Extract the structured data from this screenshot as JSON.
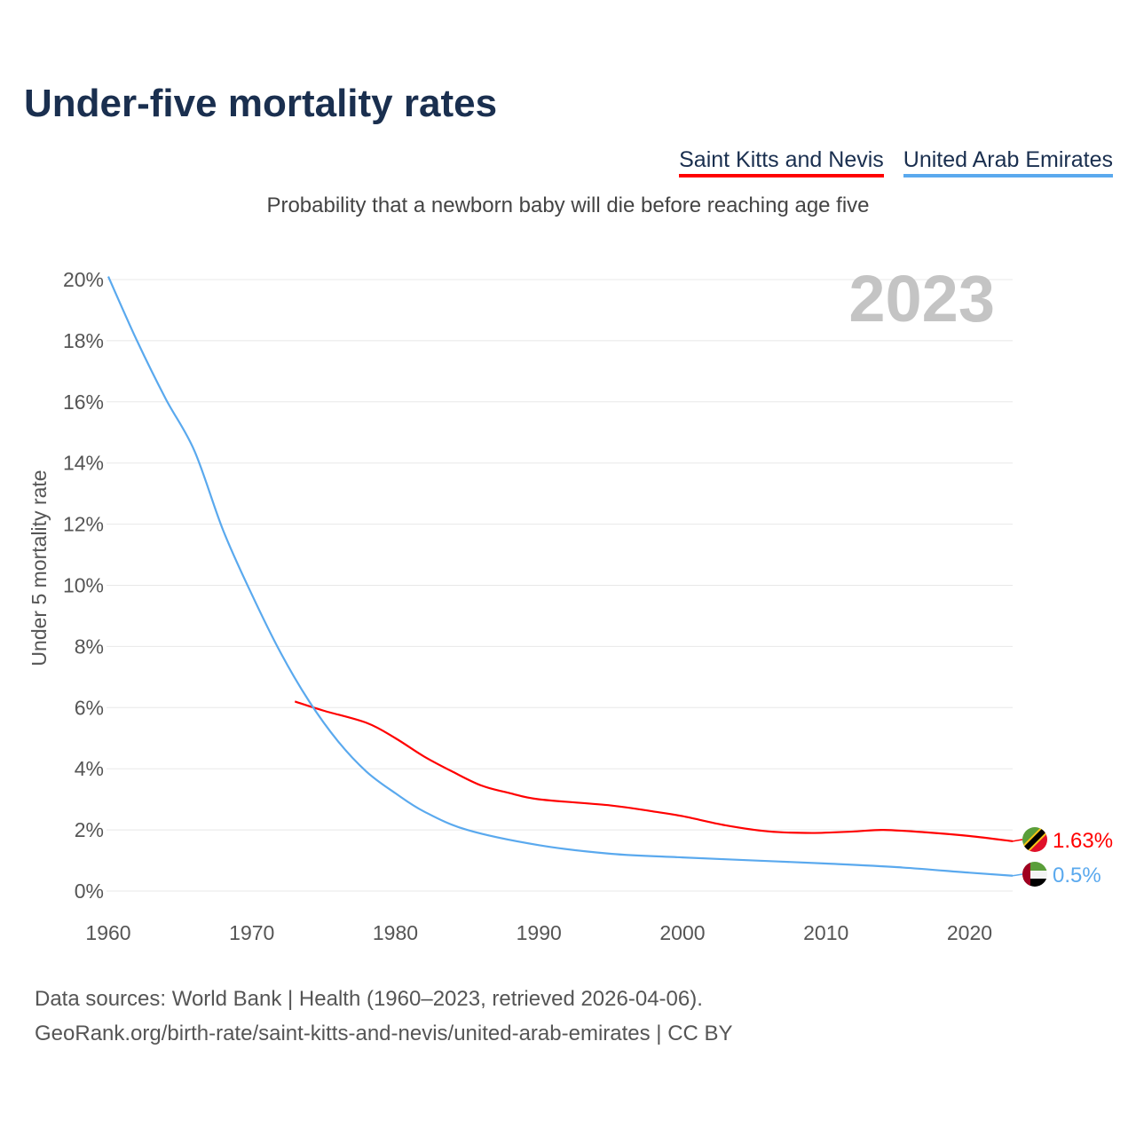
{
  "title": "Under-five mortality rates",
  "subtitle": "Probability that a newborn baby will die before reaching age five",
  "footer": {
    "line1": "Data sources: World Bank | Health (1960–2023, retrieved 2026-04-06).",
    "line2": "GeoRank.org/birth-rate/saint-kitts-and-nevis/united-arab-emirates | CC BY"
  },
  "chart_data": {
    "type": "line",
    "title": "Under-five mortality rates",
    "xlabel": "",
    "ylabel": "Under 5 mortality rate",
    "xlim": [
      1960,
      2023
    ],
    "ylim": [
      0,
      20
    ],
    "year_label": "2023",
    "x_ticks": [
      "1960",
      "1970",
      "1980",
      "1990",
      "2000",
      "2010",
      "2020"
    ],
    "y_ticks": [
      "0%",
      "2%",
      "4%",
      "6%",
      "8%",
      "10%",
      "12%",
      "14%",
      "16%",
      "18%",
      "20%"
    ],
    "grid": true,
    "legend_position": "top-right",
    "series": [
      {
        "name": "Saint Kitts and Nevis",
        "color": "#ff0000",
        "end_label": "1.63%",
        "flag": "saint-kitts-and-nevis-flag-icon",
        "x": [
          1973,
          1975,
          1978,
          1980,
          1982,
          1984,
          1986,
          1988,
          1990,
          1995,
          1998,
          2000,
          2003,
          2006,
          2009,
          2012,
          2014,
          2017,
          2020,
          2023
        ],
        "values": [
          6.2,
          5.9,
          5.5,
          5.0,
          4.4,
          3.9,
          3.45,
          3.2,
          3.0,
          2.8,
          2.6,
          2.45,
          2.15,
          1.95,
          1.9,
          1.95,
          2.0,
          1.92,
          1.8,
          1.63
        ]
      },
      {
        "name": "United Arab Emirates",
        "color": "#5aa9ee",
        "end_label": "0.5%",
        "flag": "uae-flag-icon",
        "x": [
          1960,
          1962,
          1964,
          1966,
          1968,
          1970,
          1972,
          1974,
          1976,
          1978,
          1980,
          1982,
          1985,
          1990,
          1995,
          2000,
          2005,
          2010,
          2015,
          2020,
          2023
        ],
        "values": [
          20.1,
          18.0,
          16.1,
          14.4,
          11.8,
          9.7,
          7.8,
          6.2,
          4.9,
          3.9,
          3.2,
          2.6,
          2.0,
          1.5,
          1.22,
          1.1,
          1.0,
          0.9,
          0.78,
          0.6,
          0.5
        ]
      }
    ]
  }
}
